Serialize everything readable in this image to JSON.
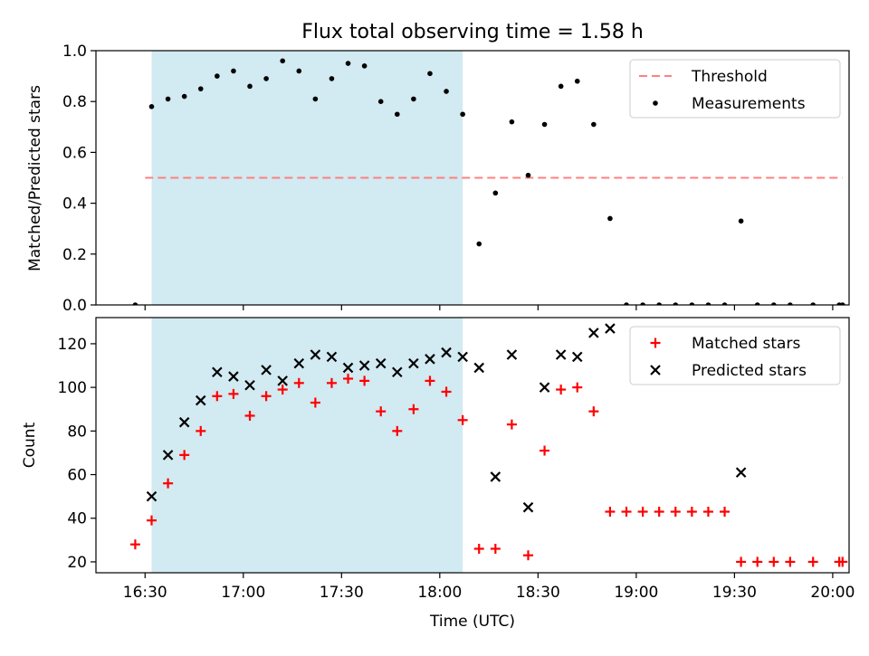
{
  "figure": {
    "title": "Flux total observing time = 1.58 h",
    "xlabel": "Time (UTC)"
  },
  "colors": {
    "highlight": "#add8e6",
    "threshold": "#ff8080",
    "measurement": "#000000",
    "matched": "#ff0000",
    "predicted": "#000000"
  },
  "chart_data": [
    {
      "type": "scatter",
      "panel": "top",
      "ylabel": "Matched/Predicted stars",
      "xlim": [
        "16:15",
        "20:05"
      ],
      "ylim": [
        0,
        1.0
      ],
      "x_ticks": [
        "16:30",
        "17:00",
        "17:30",
        "18:00",
        "18:30",
        "19:00",
        "19:30",
        "20:00"
      ],
      "y_ticks": [
        "0.0",
        "0.2",
        "0.4",
        "0.6",
        "0.8",
        "1.0"
      ],
      "highlight_span": [
        "16:32",
        "18:07"
      ],
      "threshold": {
        "name": "Threshold",
        "value": 0.5,
        "x_range": [
          "16:30",
          "20:03"
        ]
      },
      "legend": {
        "position": "upper right",
        "entries": [
          "Threshold",
          "Measurements"
        ]
      },
      "series": [
        {
          "name": "Measurements",
          "marker": "dot",
          "points": [
            [
              "16:27",
              0.0
            ],
            [
              "16:32",
              0.78
            ],
            [
              "16:37",
              0.81
            ],
            [
              "16:42",
              0.82
            ],
            [
              "16:47",
              0.85
            ],
            [
              "16:52",
              0.9
            ],
            [
              "16:57",
              0.92
            ],
            [
              "17:02",
              0.86
            ],
            [
              "17:07",
              0.89
            ],
            [
              "17:12",
              0.96
            ],
            [
              "17:17",
              0.92
            ],
            [
              "17:22",
              0.81
            ],
            [
              "17:27",
              0.89
            ],
            [
              "17:32",
              0.95
            ],
            [
              "17:37",
              0.94
            ],
            [
              "17:42",
              0.8
            ],
            [
              "17:47",
              0.75
            ],
            [
              "17:52",
              0.81
            ],
            [
              "17:57",
              0.91
            ],
            [
              "18:02",
              0.84
            ],
            [
              "18:07",
              0.75
            ],
            [
              "18:12",
              0.24
            ],
            [
              "18:17",
              0.44
            ],
            [
              "18:22",
              0.72
            ],
            [
              "18:27",
              0.51
            ],
            [
              "18:32",
              0.71
            ],
            [
              "18:37",
              0.86
            ],
            [
              "18:42",
              0.88
            ],
            [
              "18:47",
              0.71
            ],
            [
              "18:52",
              0.34
            ],
            [
              "18:57",
              0.0
            ],
            [
              "19:02",
              0.0
            ],
            [
              "19:07",
              0.0
            ],
            [
              "19:12",
              0.0
            ],
            [
              "19:17",
              0.0
            ],
            [
              "19:22",
              0.0
            ],
            [
              "19:27",
              0.0
            ],
            [
              "19:32",
              0.33
            ],
            [
              "19:37",
              0.0
            ],
            [
              "19:42",
              0.0
            ],
            [
              "19:47",
              0.0
            ],
            [
              "19:54",
              0.0
            ],
            [
              "20:02",
              0.0
            ],
            [
              "20:03",
              0.0
            ]
          ]
        }
      ]
    },
    {
      "type": "scatter",
      "panel": "bottom",
      "ylabel": "Count",
      "xlim": [
        "16:15",
        "20:05"
      ],
      "ylim": [
        15,
        132
      ],
      "x_ticks": [
        "16:30",
        "17:00",
        "17:30",
        "18:00",
        "18:30",
        "19:00",
        "19:30",
        "20:00"
      ],
      "y_ticks": [
        "20",
        "40",
        "60",
        "80",
        "100",
        "120"
      ],
      "highlight_span": [
        "16:32",
        "18:07"
      ],
      "legend": {
        "position": "upper right",
        "entries": [
          "Matched stars",
          "Predicted stars"
        ]
      },
      "series": [
        {
          "name": "Matched stars",
          "marker": "plus",
          "points": [
            [
              "16:27",
              28
            ],
            [
              "16:32",
              39
            ],
            [
              "16:37",
              56
            ],
            [
              "16:42",
              69
            ],
            [
              "16:47",
              80
            ],
            [
              "16:52",
              96
            ],
            [
              "16:57",
              97
            ],
            [
              "17:02",
              87
            ],
            [
              "17:07",
              96
            ],
            [
              "17:12",
              99
            ],
            [
              "17:17",
              102
            ],
            [
              "17:22",
              93
            ],
            [
              "17:27",
              102
            ],
            [
              "17:32",
              104
            ],
            [
              "17:37",
              103
            ],
            [
              "17:42",
              89
            ],
            [
              "17:47",
              80
            ],
            [
              "17:52",
              90
            ],
            [
              "17:57",
              103
            ],
            [
              "18:02",
              98
            ],
            [
              "18:07",
              85
            ],
            [
              "18:12",
              26
            ],
            [
              "18:17",
              26
            ],
            [
              "18:22",
              83
            ],
            [
              "18:27",
              23
            ],
            [
              "18:32",
              71
            ],
            [
              "18:37",
              99
            ],
            [
              "18:42",
              100
            ],
            [
              "18:47",
              89
            ],
            [
              "18:52",
              43
            ],
            [
              "18:57",
              43
            ],
            [
              "19:02",
              43
            ],
            [
              "19:07",
              43
            ],
            [
              "19:12",
              43
            ],
            [
              "19:17",
              43
            ],
            [
              "19:22",
              43
            ],
            [
              "19:27",
              43
            ],
            [
              "19:32",
              20
            ],
            [
              "19:37",
              20
            ],
            [
              "19:42",
              20
            ],
            [
              "19:47",
              20
            ],
            [
              "19:54",
              20
            ],
            [
              "20:02",
              20
            ],
            [
              "20:03",
              20
            ]
          ]
        },
        {
          "name": "Predicted stars",
          "marker": "x",
          "points": [
            [
              "16:32",
              50
            ],
            [
              "16:37",
              69
            ],
            [
              "16:42",
              84
            ],
            [
              "16:47",
              94
            ],
            [
              "16:52",
              107
            ],
            [
              "16:57",
              105
            ],
            [
              "17:02",
              101
            ],
            [
              "17:07",
              108
            ],
            [
              "17:12",
              103
            ],
            [
              "17:17",
              111
            ],
            [
              "17:22",
              115
            ],
            [
              "17:27",
              114
            ],
            [
              "17:32",
              109
            ],
            [
              "17:37",
              110
            ],
            [
              "17:42",
              111
            ],
            [
              "17:47",
              107
            ],
            [
              "17:52",
              111
            ],
            [
              "17:57",
              113
            ],
            [
              "18:02",
              116
            ],
            [
              "18:07",
              114
            ],
            [
              "18:12",
              109
            ],
            [
              "18:17",
              59
            ],
            [
              "18:22",
              115
            ],
            [
              "18:27",
              45
            ],
            [
              "18:32",
              100
            ],
            [
              "18:37",
              115
            ],
            [
              "18:42",
              114
            ],
            [
              "18:47",
              125
            ],
            [
              "18:52",
              127
            ],
            [
              "19:32",
              61
            ]
          ]
        }
      ]
    }
  ]
}
